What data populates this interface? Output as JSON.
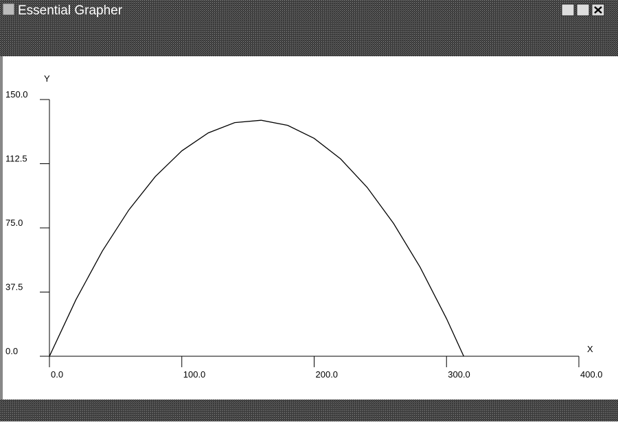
{
  "window": {
    "title": "Essential Grapher"
  },
  "chart_data": {
    "type": "line",
    "x_label": "X",
    "y_label": "Y",
    "x": [
      0,
      20,
      40,
      60,
      80,
      100,
      120,
      140,
      160,
      180,
      200,
      220,
      240,
      260,
      280,
      300,
      313
    ],
    "values": [
      0,
      33,
      61.5,
      85.5,
      105,
      120,
      130.5,
      136.5,
      137.9,
      134.9,
      127.3,
      115.3,
      98.7,
      77.6,
      52.1,
      22,
      0
    ],
    "color": "#000000",
    "xlim": [
      0,
      400
    ],
    "xticks": [
      {
        "value": 0,
        "label": "0.0"
      },
      {
        "value": 100,
        "label": "100.0"
      },
      {
        "value": 200,
        "label": "200.0"
      },
      {
        "value": 300,
        "label": "300.0"
      },
      {
        "value": 400,
        "label": "400.0"
      }
    ],
    "ylim": [
      0,
      150
    ],
    "yticks": [
      {
        "value": 0,
        "label": "0.0"
      },
      37.5,
      {
        "value": 75,
        "label": "75.0"
      },
      112.5,
      {
        "value": 150,
        "label": "150.0"
      }
    ]
  }
}
